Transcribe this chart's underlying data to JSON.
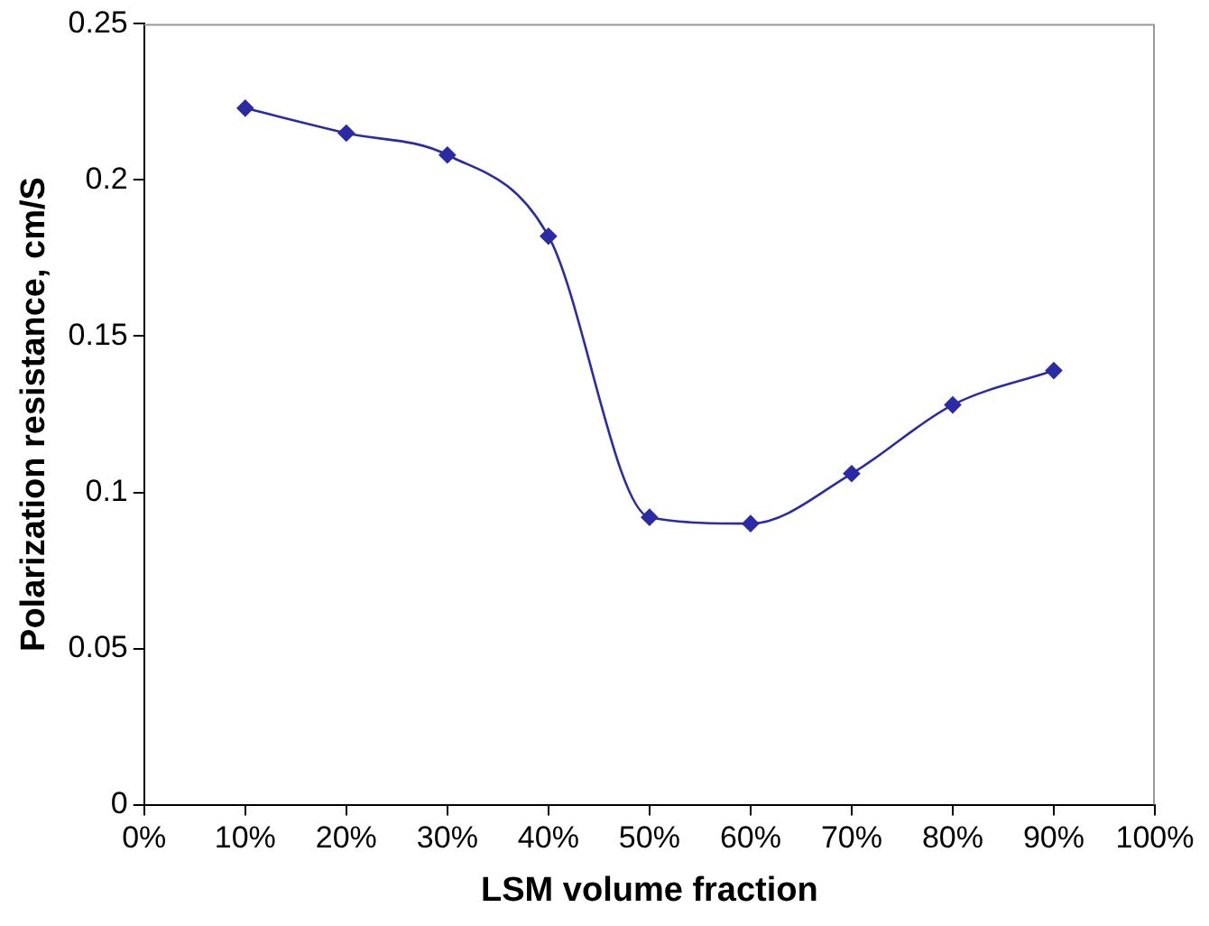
{
  "chart_data": {
    "type": "line",
    "xlabel": "LSM volume fraction",
    "ylabel": "Polarization resistance, cm/S",
    "x": [
      10,
      20,
      30,
      40,
      50,
      60,
      70,
      80,
      90
    ],
    "series": [
      {
        "color": "#2b2ba6",
        "values": [
          0.223,
          0.215,
          0.208,
          0.182,
          0.092,
          0.09,
          0.106,
          0.128,
          0.139
        ]
      }
    ],
    "xlim": [
      0,
      100
    ],
    "xticks": [
      {
        "value": 0,
        "label": "0%"
      },
      {
        "value": 10,
        "label": "10%"
      },
      {
        "value": 20,
        "label": "20%"
      },
      {
        "value": 30,
        "label": "30%"
      },
      {
        "value": 40,
        "label": "40%"
      },
      {
        "value": 50,
        "label": "50%"
      },
      {
        "value": 60,
        "label": "60%"
      },
      {
        "value": 70,
        "label": "70%"
      },
      {
        "value": 80,
        "label": "80%"
      },
      {
        "value": 90,
        "label": "90%"
      },
      {
        "value": 100,
        "label": "100%"
      }
    ],
    "ylim": [
      0,
      0.25
    ],
    "yticks": [
      0,
      0.05,
      0.1,
      0.15,
      0.2,
      0.25
    ],
    "grid": false,
    "legend": false,
    "marker": "diamond",
    "line_style": "solid"
  }
}
